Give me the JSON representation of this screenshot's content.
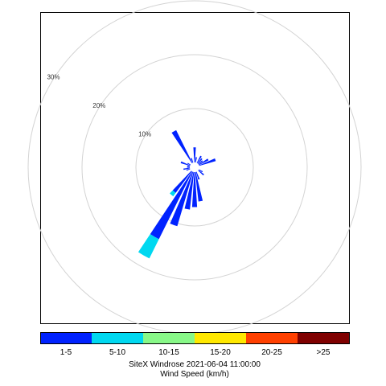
{
  "chart_data": {
    "type": "windrose",
    "title": "SiteX Windrose 2021-06-04 11:00:00",
    "key_title": "Wind Speed (km/h)",
    "grid_rings": [
      10,
      20,
      30
    ],
    "ring_labels": [
      "10%",
      "20%",
      "30%"
    ],
    "max_ring": 30,
    "speed_bins": [
      {
        "label": "1-5",
        "color": "#0022ff"
      },
      {
        "label": "5-10",
        "color": "#00d8f0"
      },
      {
        "label": "10-15",
        "color": "#88f888"
      },
      {
        "label": "15-20",
        "color": "#ffe800"
      },
      {
        "label": "20-25",
        "color": "#ff4000"
      },
      {
        "label": ">25",
        "color": "#7f0000"
      }
    ],
    "directions_deg": [
      0,
      10,
      20,
      30,
      40,
      50,
      60,
      70,
      80,
      90,
      100,
      110,
      120,
      130,
      140,
      150,
      160,
      170,
      180,
      190,
      200,
      210,
      220,
      230,
      240,
      250,
      260,
      270,
      280,
      290,
      300,
      310,
      320,
      330,
      340,
      350
    ],
    "series": [
      {
        "label": "1-5",
        "values": [
          2.8,
          1.0,
          0,
          1.5,
          1.2,
          1.0,
          2.0,
          3.2,
          0,
          0,
          0,
          0,
          0.8,
          1.3,
          0,
          0,
          1.5,
          5.5,
          6.5,
          7.0,
          10.5,
          14.0,
          5.0,
          0,
          0,
          0.7,
          1.2,
          0.5,
          0.5,
          1.8,
          0.6,
          0,
          0,
          6.8,
          0.9,
          0
        ]
      },
      {
        "label": "5-10",
        "values": [
          0,
          0,
          0,
          0,
          0,
          0,
          0,
          0,
          0,
          0,
          0,
          0,
          0,
          0,
          0,
          0,
          0,
          0,
          0,
          0,
          0,
          4.0,
          0.8,
          0,
          0,
          0,
          0,
          0,
          0,
          0,
          0,
          0,
          0,
          0,
          0,
          0
        ]
      },
      {
        "label": "10-15",
        "values": [
          0,
          0,
          0,
          0,
          0,
          0,
          0,
          0,
          0,
          0,
          0,
          0,
          0,
          0,
          0,
          0,
          0,
          0,
          0,
          0,
          0,
          0,
          0,
          0,
          0,
          0,
          0,
          0,
          0,
          0,
          0,
          0,
          0,
          0,
          0,
          0
        ]
      },
      {
        "label": "15-20",
        "values": [
          0,
          0,
          0,
          0,
          0,
          0,
          0,
          0,
          0,
          0,
          0,
          0,
          0,
          0,
          0,
          0,
          0,
          0,
          0,
          0,
          0,
          0,
          0,
          0,
          0,
          0,
          0,
          0,
          0,
          0,
          0,
          0,
          0,
          0,
          0,
          0
        ]
      },
      {
        "label": "20-25",
        "values": [
          0,
          0,
          0,
          0,
          0,
          0,
          0,
          0,
          0,
          0,
          0,
          0,
          0,
          0,
          0,
          0,
          0,
          0,
          0,
          0,
          0,
          0,
          0,
          0,
          0,
          0,
          0,
          0,
          0,
          0,
          0,
          0,
          0,
          0,
          0,
          0
        ]
      },
      {
        "label": ">25",
        "values": [
          0,
          0,
          0,
          0,
          0,
          0,
          0,
          0,
          0,
          0,
          0,
          0,
          0,
          0,
          0,
          0,
          0,
          0,
          0,
          0,
          0,
          0,
          0,
          0,
          0,
          0,
          0,
          0,
          0,
          0,
          0,
          0,
          0,
          0,
          0,
          0
        ]
      }
    ]
  }
}
